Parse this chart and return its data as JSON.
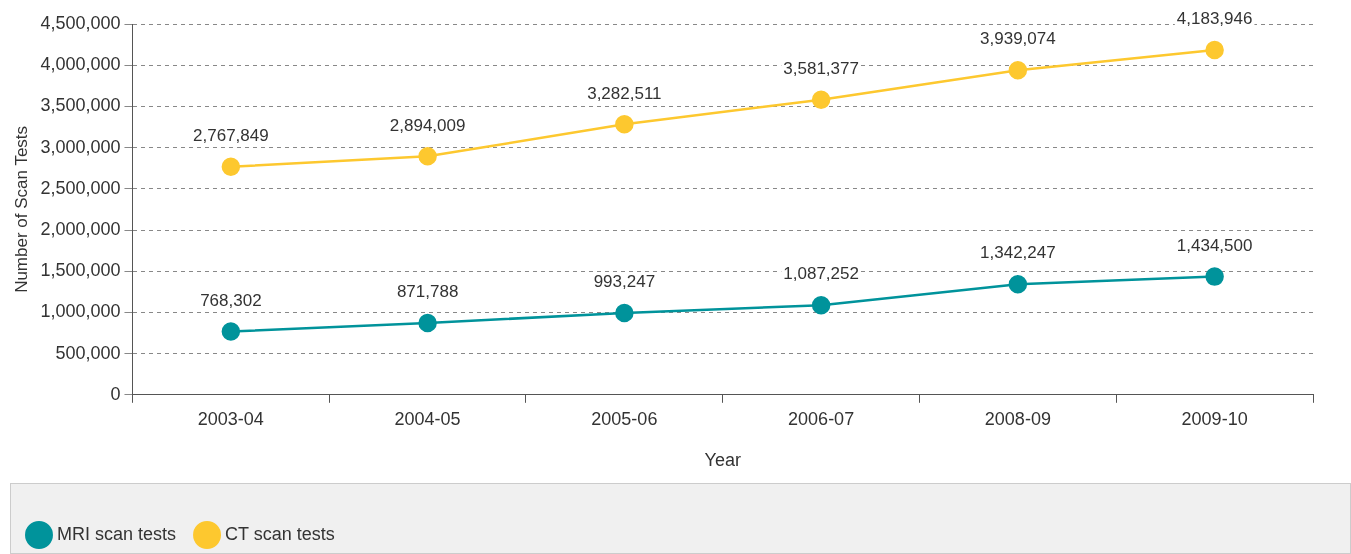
{
  "chart_data": {
    "type": "line",
    "xlabel": "Year",
    "ylabel": "Number of Scan Tests",
    "categories": [
      "2003-04",
      "2004-05",
      "2005-06",
      "2006-07",
      "2008-09",
      "2009-10"
    ],
    "series": [
      {
        "name": "MRI scan tests",
        "color": "#00939b",
        "values": [
          768302,
          871788,
          993247,
          1087252,
          1342247,
          1434500
        ],
        "value_labels": [
          "768,302",
          "871,788",
          "993,247",
          "1,087,252",
          "1,342,247",
          "1,434,500"
        ]
      },
      {
        "name": "CT scan tests",
        "color": "#fdc82f",
        "values": [
          2767849,
          2894009,
          3282511,
          3581377,
          3939074,
          4183946
        ],
        "value_labels": [
          "2,767,849",
          "2,894,009",
          "3,282,511",
          "3,581,377",
          "3,939,074",
          "4,183,946"
        ]
      }
    ],
    "ylim": [
      0,
      4500000
    ],
    "yticks": [
      {
        "value": 0,
        "label": "0"
      },
      {
        "value": 500000,
        "label": "500,000"
      },
      {
        "value": 1000000,
        "label": "1,000,000"
      },
      {
        "value": 1500000,
        "label": "1,500,000"
      },
      {
        "value": 2000000,
        "label": "2,000,000"
      },
      {
        "value": 2500000,
        "label": "2,500,000"
      },
      {
        "value": 3000000,
        "label": "3,000,000"
      },
      {
        "value": 3500000,
        "label": "3,500,000"
      },
      {
        "value": 4000000,
        "label": "4,000,000"
      },
      {
        "value": 4500000,
        "label": "4,500,000"
      }
    ],
    "grid": "y",
    "legend": "bottom",
    "marker": "circle",
    "line_style": "solid"
  }
}
